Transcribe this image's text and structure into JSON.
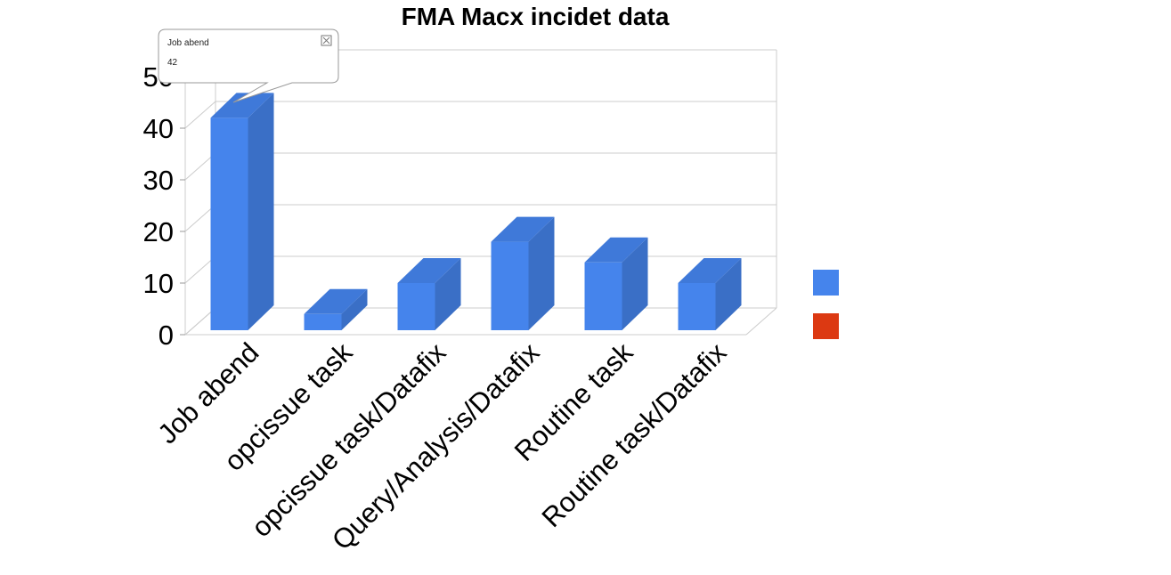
{
  "chart_data": {
    "type": "bar",
    "title": "FMA Macx incidet data",
    "categories": [
      "Job abend",
      "opcissue task",
      "opcissue task/Datafix",
      "Query/Analysis/Datafix",
      "Routine task",
      "Routine task/Datafix"
    ],
    "series": [
      {
        "values": [
          42,
          4,
          10,
          18,
          14,
          10
        ],
        "color": "#4584ec"
      }
    ],
    "legend_swatches": [
      "#4584ec",
      "#dc3912"
    ],
    "legend_position": "right",
    "ylim": [
      0,
      50
    ],
    "yticks": [
      "0",
      "10",
      "20",
      "30",
      "40",
      "50"
    ],
    "grid": true,
    "style": "3d-bar",
    "tooltip": {
      "label": "Job abend",
      "value": "42"
    }
  }
}
